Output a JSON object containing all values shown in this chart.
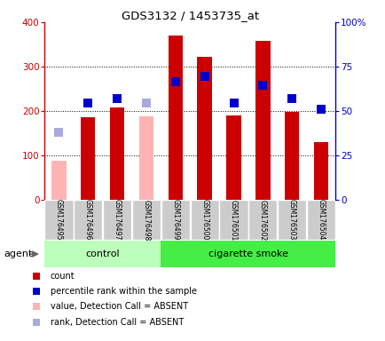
{
  "title": "GDS3132 / 1453735_at",
  "samples": [
    "GSM176495",
    "GSM176496",
    "GSM176497",
    "GSM176498",
    "GSM176499",
    "GSM176500",
    "GSM176501",
    "GSM176502",
    "GSM176503",
    "GSM176504"
  ],
  "count_values": [
    null,
    185,
    207,
    null,
    370,
    322,
    190,
    358,
    197,
    130
  ],
  "count_absent": [
    88,
    null,
    null,
    null,
    null,
    null,
    null,
    null,
    null,
    null
  ],
  "absent_bar_values": [
    null,
    null,
    null,
    187,
    null,
    null,
    null,
    null,
    null,
    null
  ],
  "rank_values": [
    null,
    218,
    228,
    null,
    266,
    278,
    218,
    258,
    228,
    204
  ],
  "rank_absent": [
    152,
    null,
    null,
    217,
    null,
    null,
    null,
    null,
    null,
    null
  ],
  "control_group": [
    0,
    1,
    2,
    3
  ],
  "smoke_group": [
    4,
    5,
    6,
    7,
    8,
    9
  ],
  "control_label": "control",
  "smoke_label": "cigarette smoke",
  "agent_label": "agent",
  "ylim": [
    0,
    400
  ],
  "y2lim": [
    0,
    100
  ],
  "yticks": [
    0,
    100,
    200,
    300,
    400
  ],
  "y2ticks": [
    0,
    25,
    50,
    75,
    100
  ],
  "y2tick_labels": [
    "0",
    "25",
    "50",
    "75",
    "100%"
  ],
  "bar_color_red": "#CC0000",
  "bar_color_pink": "#FFB3B3",
  "dot_color_blue": "#0000CC",
  "dot_color_lightblue": "#AAAADD",
  "control_bg": "#BBFFBB",
  "smoke_bg": "#44EE44",
  "sample_bg": "#CCCCCC",
  "bar_width": 0.5,
  "dot_size": 45
}
